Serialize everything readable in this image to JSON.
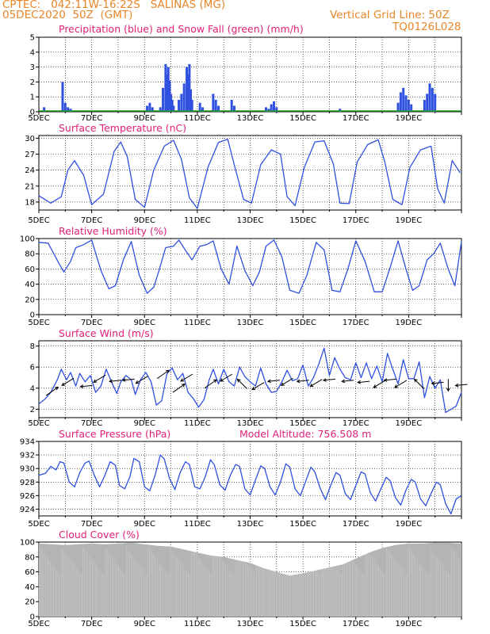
{
  "header": {
    "line1": "CPTEC:   042:11W-16:22S   SALINAS (MG)",
    "line2": "05DEC2020  50Z  (GMT)",
    "right1": "Vertical Grid Line: 50Z",
    "right2": "TQ0126L028"
  },
  "colors": {
    "header": "#e8862a",
    "title": "#e0207a",
    "series": "#3050e0",
    "snow": "#20a020",
    "cloud": "#b4b4b4"
  },
  "chart_data": [
    {
      "type": "bar",
      "title": "Precipitation (blue) and Snow Fall (green) (mm/h)",
      "ylim": [
        0,
        5
      ],
      "yticks": [
        0,
        1,
        2,
        3,
        4,
        5
      ],
      "xticks": [
        "5DEC",
        "7DEC",
        "9DEC",
        "11DEC",
        "13DEC",
        "15DEC",
        "17DEC",
        "19DEC"
      ],
      "series": [
        {
          "name": "Precipitation",
          "values": [
            [
              0.2,
              0.3
            ],
            [
              0.9,
              2.0
            ],
            [
              1.0,
              0.6
            ],
            [
              1.1,
              0.3
            ],
            [
              1.2,
              0.2
            ],
            [
              4.1,
              0.4
            ],
            [
              4.2,
              0.6
            ],
            [
              4.3,
              0.3
            ],
            [
              4.6,
              0.3
            ],
            [
              4.7,
              1.6
            ],
            [
              4.8,
              3.2
            ],
            [
              4.85,
              2.5
            ],
            [
              4.9,
              3.0
            ],
            [
              4.95,
              2.1
            ],
            [
              5.0,
              1.2
            ],
            [
              5.05,
              0.8
            ],
            [
              5.1,
              0.4
            ],
            [
              5.3,
              0.8
            ],
            [
              5.4,
              1.2
            ],
            [
              5.5,
              1.9
            ],
            [
              5.6,
              3.0
            ],
            [
              5.65,
              2.5
            ],
            [
              5.7,
              3.2
            ],
            [
              5.75,
              1.5
            ],
            [
              5.8,
              0.8
            ],
            [
              6.1,
              0.6
            ],
            [
              6.2,
              0.3
            ],
            [
              6.6,
              1.2
            ],
            [
              6.7,
              0.8
            ],
            [
              6.8,
              0.4
            ],
            [
              7.3,
              0.8
            ],
            [
              7.4,
              0.4
            ],
            [
              8.6,
              0.3
            ],
            [
              8.7,
              0.2
            ],
            [
              8.8,
              0.5
            ],
            [
              8.9,
              0.7
            ],
            [
              9.0,
              0.3
            ],
            [
              11.4,
              0.2
            ],
            [
              13.6,
              0.6
            ],
            [
              13.7,
              1.3
            ],
            [
              13.8,
              1.6
            ],
            [
              13.9,
              1.1
            ],
            [
              14.0,
              0.8
            ],
            [
              14.1,
              0.5
            ],
            [
              14.6,
              0.8
            ],
            [
              14.7,
              1.2
            ],
            [
              14.8,
              1.9
            ],
            [
              14.9,
              1.6
            ],
            [
              15.0,
              1.2
            ]
          ]
        },
        {
          "name": "Snow Fall",
          "values": []
        }
      ]
    },
    {
      "type": "line",
      "title": "Surface Temperature (nC)",
      "ylim": [
        16.5,
        30.5
      ],
      "yticks": [
        18,
        21,
        24,
        27,
        30
      ],
      "xticks": [
        "5DEC",
        "7DEC",
        "9DEC",
        "11DEC",
        "13DEC",
        "15DEC",
        "17DEC",
        "19DEC"
      ],
      "x": [
        0.0,
        0.45,
        0.85,
        1.1,
        1.35,
        1.7,
        2.0,
        2.45,
        2.85,
        3.1,
        3.35,
        3.65,
        4.0,
        4.35,
        4.75,
        5.1,
        5.4,
        5.7,
        6.0,
        6.4,
        6.8,
        7.15,
        7.45,
        7.75,
        8.05,
        8.4,
        8.8,
        9.15,
        9.4,
        9.7,
        10.05,
        10.45,
        10.8,
        11.15,
        11.4,
        11.75,
        12.05,
        12.45,
        12.85,
        13.1,
        13.4,
        13.75,
        14.05,
        14.45,
        14.85,
        15.1,
        15.35,
        15.65,
        15.95
      ],
      "values": [
        19.2,
        17.8,
        19.0,
        24.0,
        25.8,
        23.0,
        17.5,
        19.5,
        27.5,
        29.3,
        26.5,
        18.5,
        17.0,
        24.0,
        28.5,
        29.6,
        26.0,
        18.8,
        16.8,
        24.5,
        29.2,
        29.8,
        24.0,
        18.5,
        17.8,
        25.0,
        27.8,
        27.0,
        19.0,
        17.3,
        24.5,
        29.3,
        29.5,
        25.2,
        17.8,
        17.7,
        25.5,
        28.8,
        29.7,
        25.5,
        18.5,
        17.5,
        24.5,
        27.8,
        28.5,
        20.5,
        17.8,
        25.8,
        23.5
      ]
    },
    {
      "type": "line",
      "title": "Relative Humidity (%)",
      "ylim": [
        0,
        100
      ],
      "yticks": [
        0,
        20,
        40,
        60,
        80,
        100
      ],
      "xticks": [
        "5DEC",
        "7DEC",
        "9DEC",
        "11DEC",
        "13DEC",
        "15DEC",
        "17DEC",
        "19DEC"
      ],
      "x": [
        0.0,
        0.35,
        0.75,
        0.95,
        1.2,
        1.4,
        1.7,
        2.0,
        2.35,
        2.65,
        2.9,
        3.2,
        3.5,
        3.8,
        4.1,
        4.35,
        4.55,
        4.8,
        5.1,
        5.3,
        5.6,
        5.8,
        6.1,
        6.35,
        6.6,
        6.9,
        7.2,
        7.5,
        7.8,
        8.1,
        8.35,
        8.6,
        8.9,
        9.2,
        9.5,
        9.85,
        10.15,
        10.5,
        10.8,
        11.1,
        11.4,
        11.7,
        12.0,
        12.35,
        12.7,
        13.0,
        13.3,
        13.6,
        13.9,
        14.15,
        14.4,
        14.7,
        14.95,
        15.2,
        15.5,
        15.75,
        16.0
      ],
      "values": [
        95,
        94,
        68,
        56,
        70,
        88,
        92,
        98,
        58,
        34,
        38,
        72,
        96,
        52,
        28,
        36,
        58,
        88,
        90,
        98,
        82,
        72,
        90,
        92,
        97,
        60,
        40,
        90,
        58,
        38,
        56,
        90,
        98,
        76,
        32,
        28,
        52,
        95,
        85,
        32,
        30,
        60,
        97,
        70,
        30,
        30,
        62,
        97,
        60,
        32,
        38,
        72,
        80,
        94,
        60,
        38,
        96
      ]
    },
    {
      "type": "line",
      "title": "Surface Wind (m/s)",
      "ylim": [
        1.2,
        8.5
      ],
      "yticks": [
        2,
        4,
        6,
        8
      ],
      "xticks": [
        "5DEC",
        "7DEC",
        "9DEC",
        "11DEC",
        "13DEC",
        "15DEC",
        "17DEC",
        "19DEC"
      ],
      "x": [
        0.0,
        0.25,
        0.45,
        0.7,
        0.85,
        1.05,
        1.2,
        1.4,
        1.55,
        1.75,
        1.95,
        2.15,
        2.35,
        2.55,
        2.75,
        2.95,
        3.1,
        3.3,
        3.5,
        3.65,
        3.85,
        4.05,
        4.25,
        4.45,
        4.65,
        4.85,
        5.05,
        5.25,
        5.45,
        5.65,
        5.85,
        6.05,
        6.25,
        6.45,
        6.6,
        6.8,
        7.0,
        7.2,
        7.4,
        7.6,
        7.8,
        8.0,
        8.2,
        8.4,
        8.6,
        8.8,
        9.0,
        9.2,
        9.4,
        9.6,
        9.8,
        10.0,
        10.2,
        10.4,
        10.6,
        10.8,
        11.0,
        11.2,
        11.4,
        11.6,
        11.8,
        12.0,
        12.2,
        12.4,
        12.6,
        12.8,
        13.0,
        13.2,
        13.4,
        13.6,
        13.8,
        14.0,
        14.2,
        14.4,
        14.6,
        14.8,
        15.0,
        15.2,
        15.4,
        15.6,
        15.8,
        16.0
      ],
      "values": [
        2.5,
        3.0,
        3.6,
        4.8,
        5.8,
        4.8,
        5.5,
        4.2,
        5.4,
        4.6,
        5.2,
        3.6,
        4.2,
        5.8,
        4.6,
        3.5,
        4.6,
        5.2,
        4.8,
        3.4,
        4.8,
        5.5,
        4.6,
        2.4,
        2.8,
        5.4,
        5.9,
        4.8,
        5.4,
        3.6,
        3.0,
        2.2,
        2.9,
        4.8,
        5.8,
        4.4,
        5.8,
        4.6,
        4.2,
        6.0,
        5.1,
        4.6,
        4.2,
        5.9,
        4.4,
        3.6,
        3.7,
        4.6,
        5.7,
        4.7,
        4.9,
        6.2,
        4.2,
        5.0,
        6.3,
        7.8,
        5.2,
        6.9,
        5.8,
        5.0,
        4.8,
        6.4,
        5.0,
        6.4,
        4.9,
        6.1,
        4.6,
        7.3,
        5.8,
        4.4,
        6.7,
        4.9,
        4.9,
        6.5,
        3.1,
        5.1,
        4.0,
        4.8,
        1.7,
        2.0,
        2.3,
        3.6
      ]
    },
    {
      "type": "line",
      "title": "Surface Pressure (hPa)",
      "subtitle": "Model Altitude: 756.508  m",
      "ylim": [
        923.0,
        934.0
      ],
      "yticks": [
        924,
        926,
        928,
        930,
        932,
        934
      ],
      "xticks": [
        "5DEC",
        "7DEC",
        "9DEC",
        "11DEC",
        "13DEC",
        "15DEC",
        "17DEC",
        "19DEC"
      ],
      "x": [
        0.0,
        0.25,
        0.45,
        0.65,
        0.8,
        0.95,
        1.15,
        1.35,
        1.55,
        1.75,
        1.9,
        2.1,
        2.3,
        2.5,
        2.7,
        2.9,
        3.05,
        3.25,
        3.45,
        3.6,
        3.8,
        4.0,
        4.2,
        4.4,
        4.6,
        4.75,
        4.95,
        5.15,
        5.35,
        5.55,
        5.7,
        5.9,
        6.1,
        6.3,
        6.5,
        6.65,
        6.85,
        7.05,
        7.25,
        7.45,
        7.6,
        7.8,
        8.0,
        8.2,
        8.4,
        8.55,
        8.75,
        8.95,
        9.15,
        9.35,
        9.5,
        9.7,
        9.9,
        10.1,
        10.3,
        10.45,
        10.65,
        10.85,
        11.05,
        11.25,
        11.4,
        11.6,
        11.8,
        12.0,
        12.2,
        12.35,
        12.55,
        12.75,
        12.95,
        13.15,
        13.3,
        13.5,
        13.7,
        13.9,
        14.1,
        14.25,
        14.45,
        14.65,
        14.85,
        15.05,
        15.2,
        15.4,
        15.6,
        15.8,
        16.0
      ],
      "values": [
        929.0,
        929.3,
        930.3,
        929.8,
        931.0,
        930.8,
        928.0,
        927.3,
        929.4,
        930.8,
        931.1,
        929.0,
        927.3,
        929.0,
        931.0,
        930.5,
        927.5,
        927.0,
        928.8,
        931.5,
        931.0,
        927.3,
        926.7,
        929.0,
        932.0,
        931.4,
        928.5,
        926.9,
        929.4,
        931.0,
        930.6,
        927.3,
        927.0,
        928.8,
        931.3,
        930.5,
        927.6,
        926.8,
        929.0,
        930.6,
        930.3,
        927.0,
        926.1,
        928.3,
        930.4,
        930.0,
        927.3,
        926.1,
        928.0,
        930.7,
        930.2,
        927.0,
        926.0,
        928.1,
        930.2,
        929.5,
        927.1,
        925.4,
        927.5,
        929.4,
        929.0,
        926.3,
        925.4,
        927.5,
        929.5,
        929.2,
        926.4,
        925.2,
        927.0,
        928.7,
        928.2,
        925.7,
        924.6,
        926.8,
        928.4,
        928.0,
        925.5,
        924.5,
        926.3,
        928.0,
        927.6,
        924.8,
        923.3,
        925.5,
        926.0
      ]
    },
    {
      "type": "bar",
      "title": "Cloud Cover (%)",
      "ylim": [
        0,
        100
      ],
      "yticks": [
        0,
        20,
        40,
        60,
        80,
        100
      ],
      "xticks": [
        "5DEC",
        "7DEC",
        "9DEC",
        "11DEC",
        "13DEC",
        "15DEC",
        "17DEC",
        "19DEC"
      ],
      "x": [
        0,
        0.5,
        1,
        1.5,
        2,
        2.5,
        3,
        3.5,
        4,
        4.5,
        5,
        5.5,
        6,
        6.5,
        7,
        7.5,
        8,
        8.5,
        9,
        9.5,
        10,
        10.5,
        11,
        11.5,
        12,
        12.5,
        13,
        13.5,
        14,
        14.5,
        15,
        15.5,
        16
      ],
      "values": [
        98,
        97,
        96,
        97,
        98,
        97,
        98,
        99,
        97,
        95,
        94,
        90,
        86,
        82,
        80,
        76,
        72,
        65,
        60,
        55,
        58,
        62,
        66,
        70,
        78,
        86,
        92,
        96,
        98,
        98,
        99,
        99,
        98
      ]
    }
  ]
}
